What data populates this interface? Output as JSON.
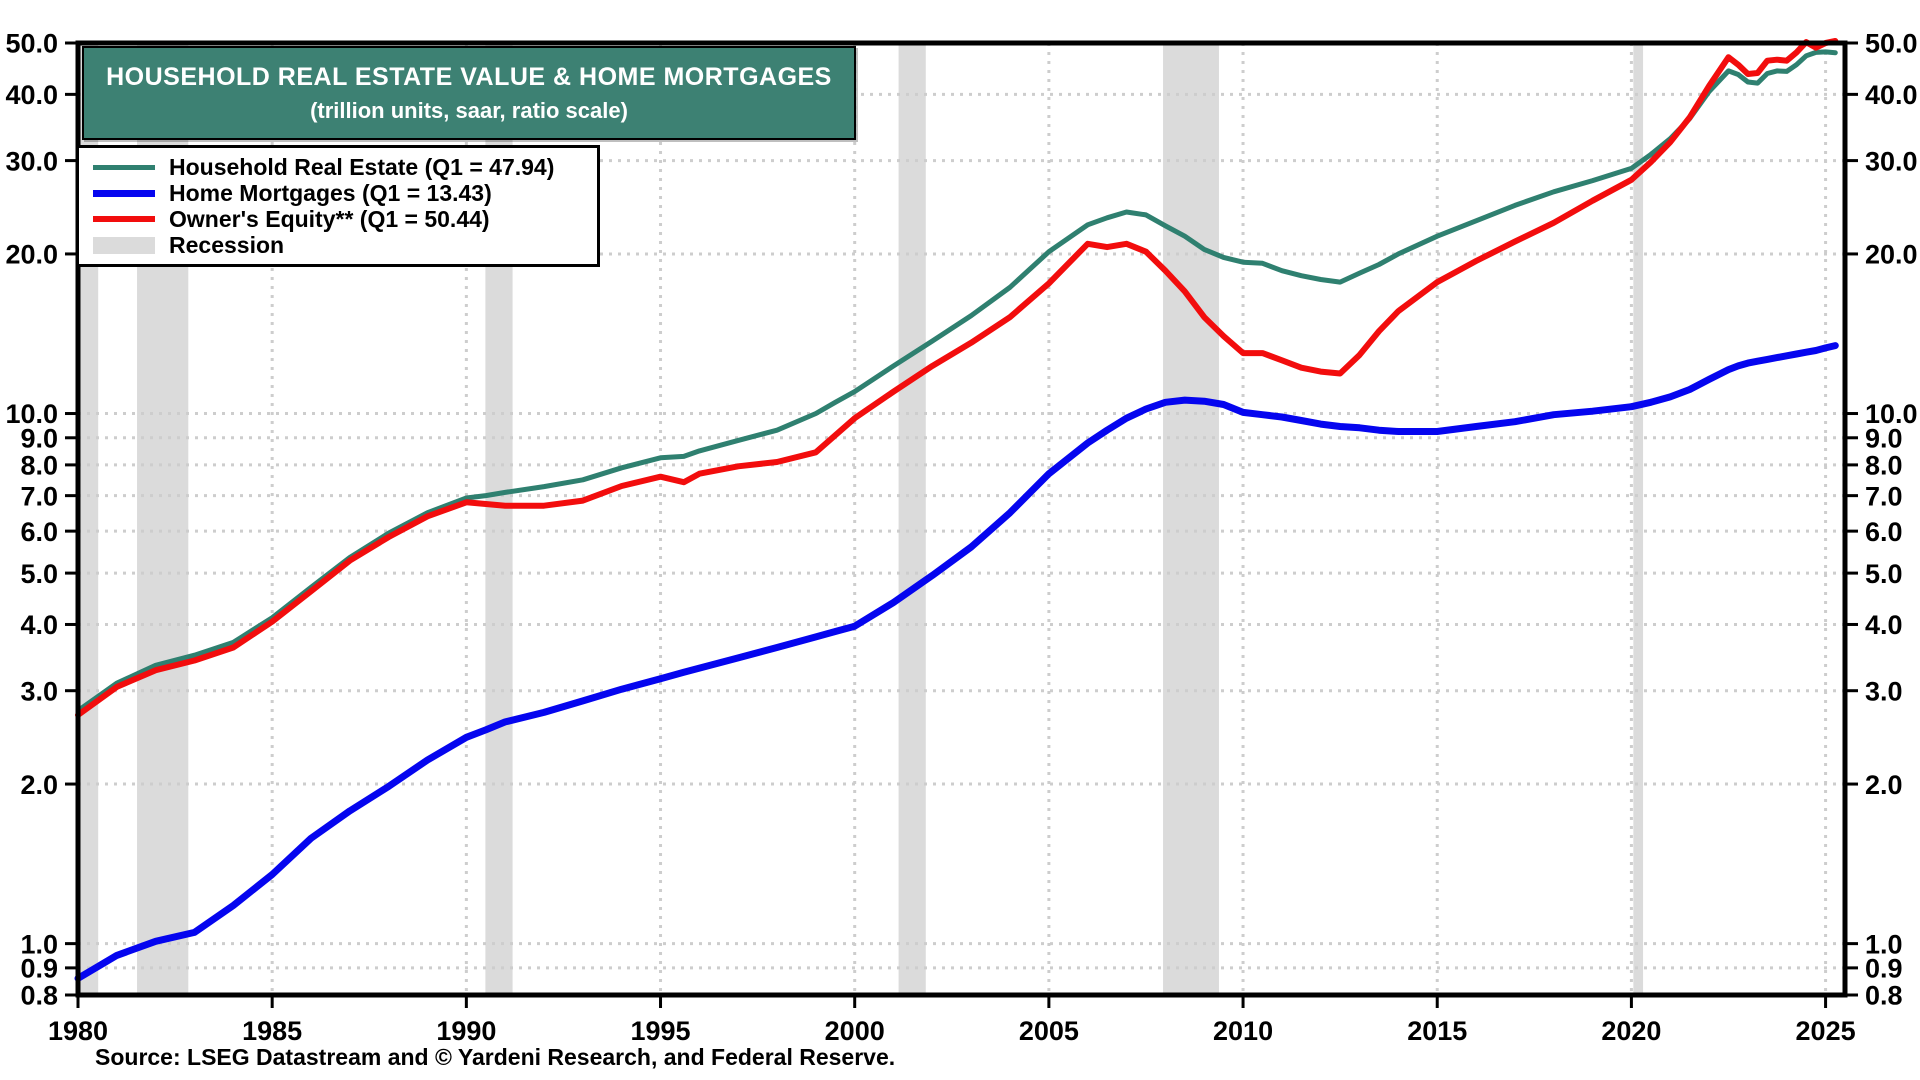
{
  "title": {
    "line1": "HOUSEHOLD REAL ESTATE VALUE & HOME MORTGAGES",
    "line2": "(trillion units, saar, ratio scale)"
  },
  "source": "Source: LSEG Datastream and © Yardeni Research, and Federal Reserve.",
  "colors": {
    "title_box_bg": "#3D8173",
    "household_real_estate": "#2F8070",
    "home_mortgages": "#0505EF",
    "owners_equity": "#F20D0D",
    "recession_band": "#DBDBDB",
    "gridline": "#CDCDCD",
    "frame": "#000000"
  },
  "legend": [
    {
      "label": "Household Real Estate (Q1 = 47.94)",
      "color": "#2F8070",
      "type": "line",
      "thickness": 5
    },
    {
      "label": "Home Mortgages (Q1 = 13.43)",
      "color": "#0505EF",
      "type": "line",
      "thickness": 7
    },
    {
      "label": "Owner's Equity** (Q1 = 50.44)",
      "color": "#F20D0D",
      "type": "line",
      "thickness": 6
    },
    {
      "label": "Recession",
      "color": "#DBDBDB",
      "type": "box",
      "thickness": 17
    }
  ],
  "chart_data": {
    "type": "line",
    "title": "HOUSEHOLD REAL ESTATE VALUE & HOME MORTGAGES",
    "subtitle": "(trillion units, saar, ratio scale)",
    "y_scale": "log",
    "xlim": [
      1980,
      2025.5
    ],
    "ylim": [
      0.8,
      50
    ],
    "x_ticks": [
      1980,
      1985,
      1990,
      1995,
      2000,
      2005,
      2010,
      2015,
      2020,
      2025
    ],
    "y_ticks": [
      50,
      40,
      30,
      20,
      10,
      9,
      8,
      7,
      6,
      5,
      4,
      3,
      2,
      1,
      0.9,
      0.8
    ],
    "y_tick_labels": [
      "50.0",
      "40.0",
      "30.0",
      "20.0",
      "10.0",
      "9.0",
      "8.0",
      "7.0",
      "6.0",
      "5.0",
      "4.0",
      "3.0",
      "2.0",
      "1.0",
      "0.9",
      "0.8"
    ],
    "grid": "dotted, horizontal at each y tick and vertical at each x tick",
    "legend_position": "top-left",
    "recessions": [
      [
        1980.05,
        1980.52
      ],
      [
        1981.52,
        1982.84
      ],
      [
        1990.49,
        1991.19
      ],
      [
        2001.13,
        2001.83
      ],
      [
        2007.94,
        2009.38
      ],
      [
        2020.05,
        2020.3
      ]
    ],
    "x": [
      1980,
      1981,
      1982,
      1983,
      1984,
      1985,
      1986,
      1987,
      1988,
      1989,
      1990,
      1990.5,
      1991,
      1992,
      1993,
      1994,
      1995,
      1995.6,
      1996,
      1997,
      1998,
      1999,
      1999.5,
      2000,
      2001,
      2002,
      2003,
      2004,
      2005,
      2006,
      2006.5,
      2007,
      2007.5,
      2008,
      2008.5,
      2009,
      2009.5,
      2010,
      2010.5,
      2011,
      2011.5,
      2012,
      2012.5,
      2013,
      2013.5,
      2014,
      2015,
      2016,
      2017,
      2018,
      2019,
      2020,
      2020.5,
      2021,
      2021.5,
      2022,
      2022.5,
      2022.75,
      2023,
      2023.25,
      2023.5,
      2023.75,
      2024,
      2024.25,
      2024.5,
      2024.75,
      2025,
      2025.25
    ],
    "series": [
      {
        "name": "Household Real Estate (Q1 = 47.94)",
        "color": "#2F8070",
        "q1_2025_value": 47.94,
        "values": [
          2.75,
          3.1,
          3.35,
          3.5,
          3.7,
          4.12,
          4.7,
          5.35,
          5.95,
          6.5,
          6.93,
          7.0,
          7.1,
          7.28,
          7.5,
          7.9,
          8.25,
          8.3,
          8.5,
          8.9,
          9.3,
          10.0,
          10.5,
          11.0,
          12.3,
          13.7,
          15.3,
          17.3,
          20.2,
          22.7,
          23.4,
          24.0,
          23.7,
          22.6,
          21.6,
          20.4,
          19.7,
          19.3,
          19.2,
          18.6,
          18.2,
          17.9,
          17.7,
          18.4,
          19.1,
          20.0,
          21.6,
          23.1,
          24.7,
          26.2,
          27.5,
          29.0,
          30.8,
          33.0,
          36.0,
          40.5,
          44.3,
          43.6,
          42.2,
          42.0,
          43.8,
          44.3,
          44.2,
          45.5,
          47.3,
          48.0,
          48.1,
          47.94
        ]
      },
      {
        "name": "Home Mortgages (Q1 = 13.43)",
        "color": "#0505EF",
        "q1_2025_value": 13.43,
        "values": [
          0.86,
          0.95,
          1.01,
          1.05,
          1.18,
          1.35,
          1.58,
          1.78,
          1.98,
          2.22,
          2.45,
          2.53,
          2.62,
          2.73,
          2.87,
          3.02,
          3.16,
          3.25,
          3.31,
          3.46,
          3.62,
          3.79,
          3.88,
          3.97,
          4.4,
          4.95,
          5.6,
          6.5,
          7.7,
          8.8,
          9.3,
          9.8,
          10.2,
          10.5,
          10.6,
          10.55,
          10.4,
          10.05,
          9.95,
          9.85,
          9.7,
          9.55,
          9.45,
          9.4,
          9.3,
          9.25,
          9.25,
          9.45,
          9.65,
          9.95,
          10.1,
          10.3,
          10.5,
          10.75,
          11.1,
          11.6,
          12.1,
          12.3,
          12.45,
          12.55,
          12.65,
          12.75,
          12.85,
          12.95,
          13.05,
          13.15,
          13.3,
          13.43
        ]
      },
      {
        "name": "Owner's Equity** (Q1 = 50.44)",
        "color": "#F20D0D",
        "q1_2025_value": 50.44,
        "values": [
          2.7,
          3.05,
          3.28,
          3.42,
          3.62,
          4.05,
          4.62,
          5.28,
          5.85,
          6.4,
          6.8,
          6.75,
          6.7,
          6.7,
          6.85,
          7.3,
          7.6,
          7.42,
          7.7,
          7.95,
          8.1,
          8.45,
          9.1,
          9.8,
          11.0,
          12.3,
          13.6,
          15.2,
          17.6,
          20.9,
          20.6,
          20.9,
          20.2,
          18.6,
          17.0,
          15.2,
          14.0,
          13.0,
          13.0,
          12.6,
          12.2,
          12.0,
          11.9,
          12.9,
          14.3,
          15.6,
          17.7,
          19.4,
          21.1,
          22.9,
          25.2,
          27.6,
          29.8,
          32.5,
          36.2,
          41.5,
          47.0,
          45.5,
          43.7,
          43.9,
          46.3,
          46.5,
          46.3,
          48.0,
          50.2,
          49.0,
          50.0,
          50.44
        ]
      }
    ]
  }
}
